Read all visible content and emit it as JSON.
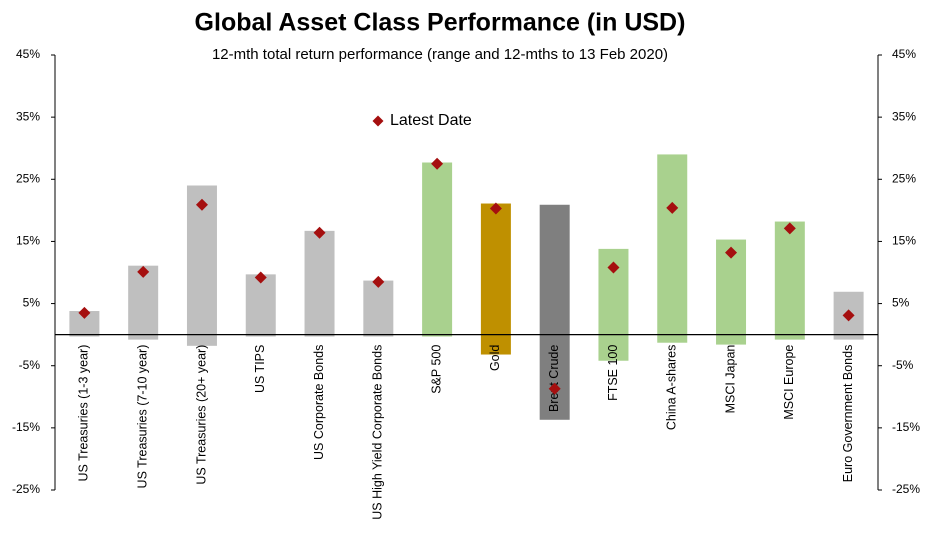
{
  "chart_data": {
    "type": "range",
    "title": "Global Asset Class Performance (in USD)",
    "subtitle": "12-mth total return performance (range and 12-mths to 13 Feb 2020)",
    "categories": [
      "US Treasuries (1-3 year)",
      "US Treasuries (7-10 year)",
      "US Treasuries (20+ year)",
      "US TIPS",
      "US Corporate Bonds",
      "US High Yield Corporate Bonds",
      "S&P 500",
      "Gold",
      "Brent Crude",
      "FTSE 100",
      "China A-shares",
      "MSCI Japan",
      "MSCI Europe",
      "Euro Government Bonds"
    ],
    "low": [
      -0.3,
      -0.8,
      -1.8,
      -0.3,
      -0.3,
      -0.3,
      -0.3,
      -3.2,
      -13.7,
      -4.2,
      -1.3,
      -1.6,
      -0.8,
      -0.8
    ],
    "high": [
      3.8,
      11.1,
      24,
      9.7,
      16.7,
      8.7,
      27.7,
      21.1,
      20.9,
      13.8,
      29,
      15.3,
      18.2,
      6.9
    ],
    "colors": [
      "#bfbfbf",
      "#bfbfbf",
      "#bfbfbf",
      "#bfbfbf",
      "#bfbfbf",
      "#bfbfbf",
      "#a9d18e",
      "#bf9000",
      "#7f7f7f",
      "#a9d18e",
      "#a9d18e",
      "#a9d18e",
      "#a9d18e",
      "#bfbfbf"
    ],
    "series": [
      {
        "name": "Latest Date",
        "color": "#a50f0f",
        "values": [
          3.5,
          10.1,
          20.9,
          9.2,
          16.4,
          8.5,
          27.5,
          20.3,
          -8.7,
          10.8,
          20.4,
          13.2,
          17.1,
          3.1
        ]
      }
    ],
    "ylim": [
      -25,
      45
    ],
    "yticks": [
      {
        "value": 45,
        "label": "45%"
      },
      {
        "value": 35,
        "label": "35%"
      },
      {
        "value": 25,
        "label": "25%"
      },
      {
        "value": 15,
        "label": "15%"
      },
      {
        "value": 5,
        "label": "5%"
      },
      {
        "value": -5,
        "label": "-5%"
      },
      {
        "value": -15,
        "label": "-15%"
      },
      {
        "value": -25,
        "label": "-25%"
      }
    ],
    "y2lim": [
      -25,
      45
    ],
    "y2ticks": [
      {
        "value": 45,
        "label": "45%"
      },
      {
        "value": 35,
        "label": "35%"
      },
      {
        "value": 25,
        "label": "25%"
      },
      {
        "value": 15,
        "label": "15%"
      },
      {
        "value": 5,
        "label": "5%"
      },
      {
        "value": -5,
        "label": "-5%"
      },
      {
        "value": -15,
        "label": "-15%"
      },
      {
        "value": -25,
        "label": "-25%"
      }
    ]
  }
}
